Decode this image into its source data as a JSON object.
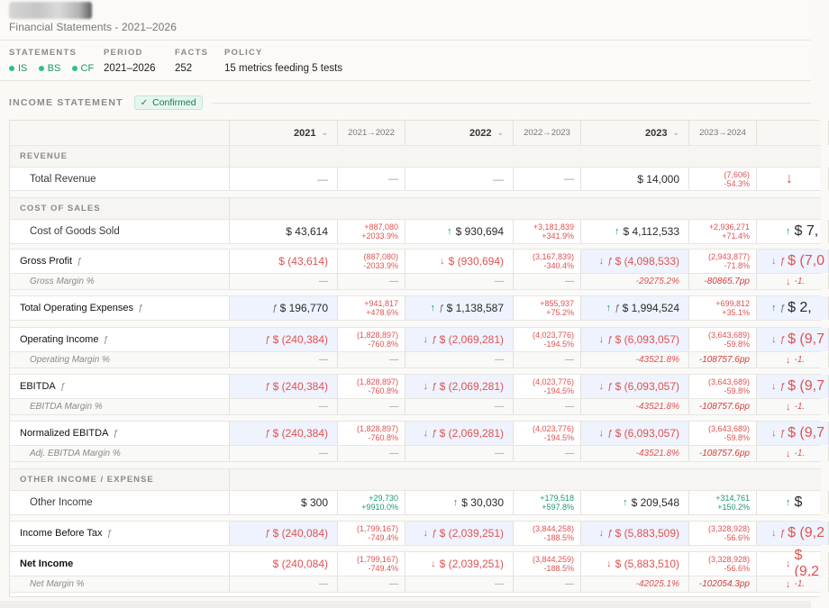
{
  "header": {
    "subtitle": "Financial Statements - 2021–2026"
  },
  "meta": {
    "statements_label": "STATEMENTS",
    "statements": [
      "IS",
      "BS",
      "CF"
    ],
    "period_label": "PERIOD",
    "period": "2021–2026",
    "facts_label": "FACTS",
    "facts": "252",
    "policy_label": "POLICY",
    "policy": "15 metrics feeding 5 tests"
  },
  "section": {
    "title": "INCOME STATEMENT",
    "badge": "Confirmed"
  },
  "columns": {
    "y1": "2021",
    "d1": "2021→2022",
    "y2": "2022",
    "d2": "2022→2023",
    "y3": "2023",
    "d3": "2023→2024"
  },
  "rows": {
    "revenue_hdr": "REVENUE",
    "total_revenue": {
      "label": "Total Revenue",
      "y1": "—",
      "d1": "—",
      "y2": "—",
      "d2": "—",
      "y3": "$ 14,000",
      "d3a": "(7,606)",
      "d3b": "-54.3%",
      "y4": "↓"
    },
    "cos_hdr": "COST OF SALES",
    "cogs": {
      "label": "Cost of Goods Sold",
      "y1": "$ 43,614",
      "d1a": "+887,080",
      "d1b": "+2033.9%",
      "y2": "$ 930,694",
      "d2a": "+3,181,839",
      "d2b": "+341.9%",
      "y3": "$ 4,112,533",
      "d3a": "+2,936,271",
      "d3b": "+71.4%",
      "y4": "$ 7,",
      "y4v": "$ 7,"
    },
    "gross_profit": {
      "label": "Gross Profit",
      "y1": "$ (43,614)",
      "d1a": "(887,080)",
      "d1b": "-2033.9%",
      "y2": "$ (930,694)",
      "d2a": "(3,167,839)",
      "d2b": "-340.4%",
      "y3": "$ (4,098,533)",
      "d3a": "(2,943,877)",
      "d3b": "-71.8%",
      "y4": "$ (7,0"
    },
    "gross_margin": {
      "label": "Gross Margin %",
      "y1": "—",
      "d1": "—",
      "y2": "—",
      "d2": "—",
      "y3": "-29275.2%",
      "d3": "-80865.7pp",
      "y4": "-1."
    },
    "opex": {
      "label": "Total Operating Expenses",
      "y1": "$ 196,770",
      "d1a": "+941,817",
      "d1b": "+478.6%",
      "y2": "$ 1,138,587",
      "d2a": "+855,937",
      "d2b": "+75.2%",
      "y3": "$ 1,994,524",
      "d3a": "+699,812",
      "d3b": "+35.1%",
      "y4": "$ 2,"
    },
    "op_income": {
      "label": "Operating Income",
      "y1": "$ (240,384)",
      "d1a": "(1,828,897)",
      "d1b": "-760.8%",
      "y2": "$ (2,069,281)",
      "d2a": "(4,023,776)",
      "d2b": "-194.5%",
      "y3": "$ (6,093,057)",
      "d3a": "(3,643,689)",
      "d3b": "-59.8%",
      "y4": "$ (9,7"
    },
    "op_margin": {
      "label": "Operating Margin %",
      "y1": "—",
      "d1": "—",
      "y2": "—",
      "d2": "—",
      "y3": "-43521.8%",
      "d3": "-108757.6pp",
      "y4": "-1."
    },
    "ebitda": {
      "label": "EBITDA",
      "y1": "$ (240,384)",
      "d1a": "(1,828,897)",
      "d1b": "-760.8%",
      "y2": "$ (2,069,281)",
      "d2a": "(4,023,776)",
      "d2b": "-194.5%",
      "y3": "$ (6,093,057)",
      "d3a": "(3,643,689)",
      "d3b": "-59.8%",
      "y4": "$ (9,7"
    },
    "ebitda_margin": {
      "label": "EBITDA Margin %",
      "y1": "—",
      "d1": "—",
      "y2": "—",
      "d2": "—",
      "y3": "-43521.8%",
      "d3": "-108757.6pp",
      "y4": "-1."
    },
    "norm_ebitda": {
      "label": "Normalized EBITDA",
      "y1": "$ (240,384)",
      "d1a": "(1,828,897)",
      "d1b": "-760.8%",
      "y2": "$ (2,069,281)",
      "d2a": "(4,023,776)",
      "d2b": "-194.5%",
      "y3": "$ (6,093,057)",
      "d3a": "(3,643,689)",
      "d3b": "-59.8%",
      "y4": "$ (9,7"
    },
    "adj_margin": {
      "label": "Adj. EBITDA Margin %",
      "y1": "—",
      "d1": "—",
      "y2": "—",
      "d2": "—",
      "y3": "-43521.8%",
      "d3": "-108757.6pp",
      "y4": "-1."
    },
    "other_hdr": "OTHER INCOME / EXPENSE",
    "other_income": {
      "label": "Other Income",
      "y1": "$ 300",
      "d1a": "+29,730",
      "d1b": "+9910.0%",
      "y2": "$ 30,030",
      "d2a": "+179,518",
      "d2b": "+597.8%",
      "y3": "$ 209,548",
      "d3a": "+314,761",
      "d3b": "+150.2%",
      "y4": "$"
    },
    "ibt": {
      "label": "Income Before Tax",
      "y1": "$ (240,084)",
      "d1a": "(1,799,167)",
      "d1b": "-749.4%",
      "y2": "$ (2,039,251)",
      "d2a": "(3,844,258)",
      "d2b": "-188.5%",
      "y3": "$ (5,883,509)",
      "d3a": "(3,328,928)",
      "d3b": "-56.6%",
      "y4": "$ (9,2"
    },
    "net_income": {
      "label": "Net Income",
      "y1": "$ (240,084)",
      "d1a": "(1,799,167)",
      "d1b": "-749.4%",
      "y2": "$ (2,039,251)",
      "d2a": "(3,844,259)",
      "d2b": "-188.5%",
      "y3": "$ (5,883,510)",
      "d3a": "(3,328,928)",
      "d3b": "-56.6%",
      "y4": "$ (9,2"
    },
    "net_margin": {
      "label": "Net Margin %",
      "y1": "—",
      "d1": "—",
      "y2": "—",
      "d2": "—",
      "y3": "-42025.1%",
      "d3": "-102054.3pp",
      "y4": "-1."
    }
  }
}
